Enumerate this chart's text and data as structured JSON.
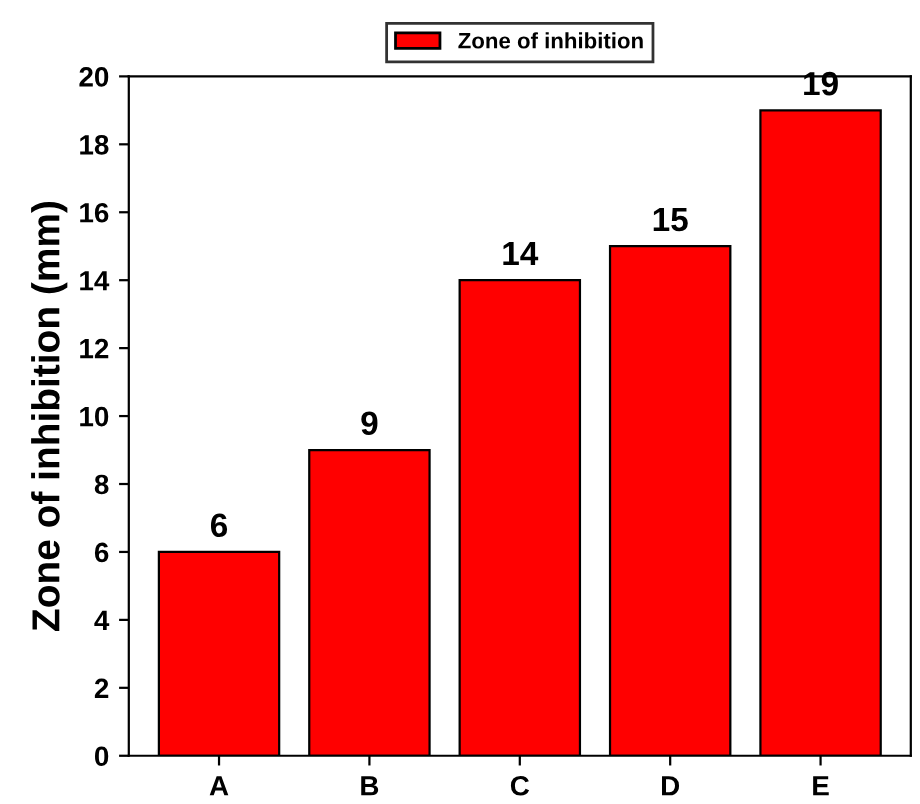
{
  "chart_data": {
    "type": "bar",
    "ylabel": "Zone of inhibition (mm)",
    "categories": [
      "A",
      "B",
      "C",
      "D",
      "E"
    ],
    "series": [
      {
        "name": "Zone of inhibition",
        "color": "#ff0000",
        "values": [
          6,
          9,
          14,
          15,
          19
        ]
      }
    ],
    "ylim": [
      0,
      20
    ],
    "yticks": [
      0,
      2,
      4,
      6,
      8,
      10,
      12,
      14,
      16,
      18,
      20
    ],
    "data_labels": true,
    "legend": "top",
    "grid": false
  }
}
